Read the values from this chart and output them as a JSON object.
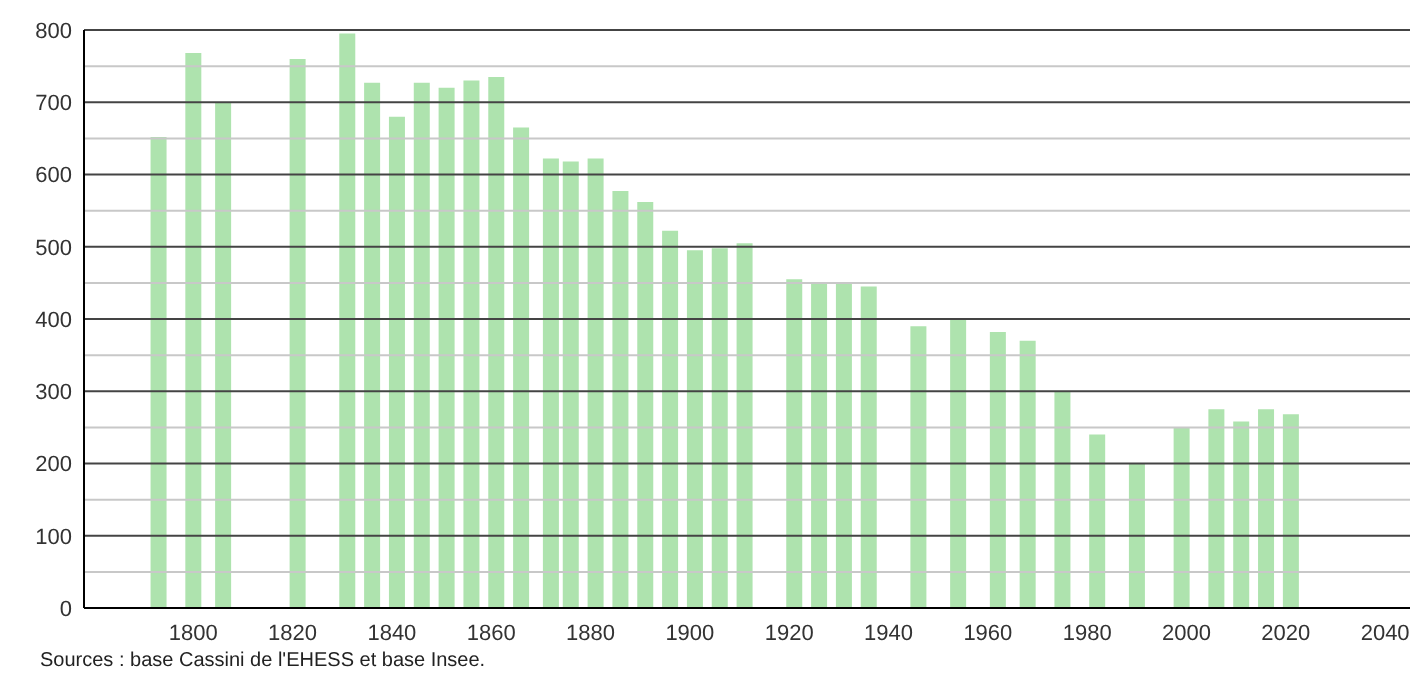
{
  "chart_data": {
    "type": "bar",
    "x": [
      1793,
      1800,
      1806,
      1821,
      1831,
      1836,
      1841,
      1846,
      1851,
      1856,
      1861,
      1866,
      1872,
      1876,
      1881,
      1886,
      1891,
      1896,
      1901,
      1906,
      1911,
      1921,
      1926,
      1931,
      1936,
      1946,
      1954,
      1962,
      1968,
      1975,
      1982,
      1990,
      1999,
      2006,
      2011,
      2016,
      2021
    ],
    "values": [
      652,
      768,
      700,
      760,
      795,
      727,
      680,
      727,
      720,
      730,
      735,
      665,
      622,
      618,
      622,
      577,
      562,
      522,
      495,
      498,
      505,
      455,
      450,
      450,
      445,
      390,
      400,
      382,
      370,
      300,
      240,
      200,
      250,
      275,
      258,
      275,
      268
    ],
    "color": "#aee3ae",
    "xlim": [
      1778,
      2045
    ],
    "xticks": [
      1800,
      1820,
      1840,
      1860,
      1880,
      1900,
      1920,
      1940,
      1960,
      1980,
      2000,
      2020,
      2040
    ],
    "ylim": [
      0,
      800
    ],
    "yticks": [
      0,
      {
        "value": 50,
        "label": null
      },
      100,
      {
        "value": 150,
        "label": null
      },
      200,
      {
        "value": 250,
        "label": null
      },
      300,
      {
        "value": 350,
        "label": null
      },
      400,
      {
        "value": 450,
        "label": null
      },
      500,
      {
        "value": 550,
        "label": null
      },
      600,
      {
        "value": 650,
        "label": null
      },
      700,
      {
        "value": 750,
        "label": null
      },
      800
    ],
    "grid": "y",
    "annotations": [
      "Sources : base Cassini de l'EHESS et base Insee."
    ]
  }
}
